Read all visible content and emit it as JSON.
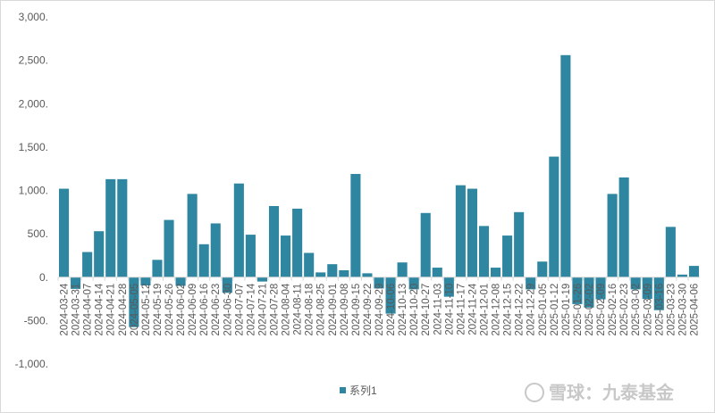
{
  "chart_data": {
    "type": "bar",
    "title": "",
    "xlabel": "",
    "ylabel": "",
    "ylim": [
      -1000,
      3000
    ],
    "yticks": [
      3000,
      2500,
      2000,
      1500,
      1000,
      500,
      0,
      -500,
      -1000
    ],
    "ytick_labels": [
      "3,000.",
      "2,500.",
      "2,000.",
      "1,500.",
      "1,000.",
      "500.",
      "0.",
      "-500.",
      "-1,000."
    ],
    "grid": false,
    "legend_position": "bottom",
    "categories": [
      "2024-03-24",
      "2024-03-31",
      "2024-04-07",
      "2024-04-14",
      "2024-04-21",
      "2024-04-28",
      "2024-05-05",
      "2024-05-12",
      "2024-05-19",
      "2024-05-26",
      "2024-06-02",
      "2024-06-09",
      "2024-06-16",
      "2024-06-23",
      "2024-06-30",
      "2024-07-07",
      "2024-07-14",
      "2024-07-21",
      "2024-07-28",
      "2024-08-04",
      "2024-08-11",
      "2024-08-18",
      "2024-08-25",
      "2024-09-01",
      "2024-09-08",
      "2024-09-15",
      "2024-09-22",
      "2024-09-29",
      "2024-10-06",
      "2024-10-13",
      "2024-10-20",
      "2024-10-27",
      "2024-11-03",
      "2024-11-10",
      "2024-11-17",
      "2024-11-24",
      "2024-12-01",
      "2024-12-08",
      "2024-12-15",
      "2024-12-22",
      "2024-12-29",
      "2025-01-05",
      "2025-01-12",
      "2025-01-19",
      "2025-01-26",
      "2025-02-02",
      "2025-02-09",
      "2025-02-16",
      "2025-02-23",
      "2025-03-02",
      "2025-03-09",
      "2025-03-16",
      "2025-03-23",
      "2025-03-30",
      "2025-04-06"
    ],
    "series": [
      {
        "name": "系列1",
        "color": "#2e86a0",
        "values": [
          1020,
          -135,
          290,
          530,
          1130,
          1130,
          -575,
          -95,
          200,
          660,
          -100,
          960,
          380,
          620,
          -180,
          1080,
          490,
          -50,
          820,
          480,
          790,
          280,
          55,
          150,
          80,
          1190,
          45,
          -130,
          -420,
          170,
          -140,
          740,
          110,
          -225,
          1060,
          1020,
          590,
          110,
          480,
          750,
          -140,
          180,
          1390,
          2560,
          -310,
          -350,
          -255,
          960,
          1150,
          -140,
          -250,
          -380,
          580,
          30,
          130
        ]
      }
    ]
  },
  "watermark": "雪球：九泰基金"
}
